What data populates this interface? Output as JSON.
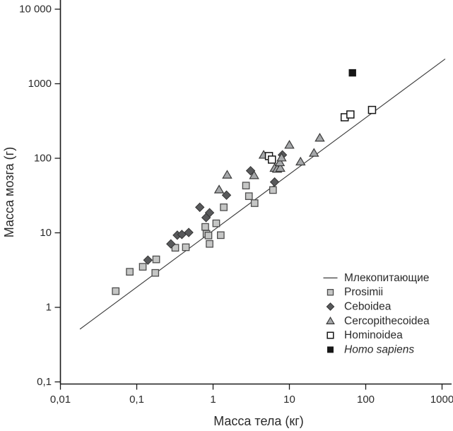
{
  "chart_data": {
    "type": "scatter",
    "title": "",
    "xlabel": "Масса тела (кг)",
    "ylabel": "Масса мозга (г)",
    "x_scale": "log",
    "y_scale": "log",
    "xlim": [
      0.01,
      1000
    ],
    "ylim": [
      0.1,
      10000
    ],
    "grid": false,
    "x_ticks": {
      "values": [
        0.01,
        0.1,
        1,
        10,
        100,
        1000
      ],
      "labels": [
        "0,01",
        "0,1",
        "1",
        "10",
        "100",
        "1000"
      ]
    },
    "y_ticks": {
      "values": [
        10000,
        1000,
        100,
        10,
        1,
        0.1
      ],
      "labels": [
        "10 000",
        "1000",
        "100",
        "10",
        "1",
        "0,1"
      ]
    },
    "regression_line": {
      "name": "Млекопитающие",
      "x": [
        0.018,
        1100
      ],
      "y": [
        0.51,
        2150
      ],
      "color": "#3c3c3c"
    },
    "series": [
      {
        "name": "Prosimii",
        "marker": "square",
        "fill": "#c5c6c5",
        "stroke": "#4c4c4c",
        "points": [
          [
            0.053,
            1.65
          ],
          [
            0.081,
            3.0
          ],
          [
            0.12,
            3.5
          ],
          [
            0.175,
            2.9
          ],
          [
            0.18,
            4.4
          ],
          [
            0.32,
            6.3
          ],
          [
            0.44,
            6.4
          ],
          [
            0.79,
            12
          ],
          [
            0.82,
            9.7
          ],
          [
            0.87,
            9.2
          ],
          [
            0.9,
            7.1
          ],
          [
            1.1,
            13.4
          ],
          [
            1.26,
            9.3
          ],
          [
            1.38,
            22
          ],
          [
            2.7,
            43
          ],
          [
            2.95,
            31
          ],
          [
            3.5,
            25
          ],
          [
            6.1,
            37.5
          ]
        ]
      },
      {
        "name": "Ceboidea",
        "marker": "diamond",
        "fill": "#58595b",
        "stroke": "#353535",
        "points": [
          [
            0.14,
            4.3
          ],
          [
            0.28,
            7.1
          ],
          [
            0.34,
            9.3
          ],
          [
            0.39,
            9.5
          ],
          [
            0.48,
            10.1
          ],
          [
            0.67,
            22
          ],
          [
            0.81,
            16
          ],
          [
            0.9,
            18.6
          ],
          [
            1.5,
            32
          ],
          [
            3.1,
            68
          ],
          [
            6.4,
            48
          ],
          [
            8.1,
            111
          ]
        ]
      },
      {
        "name": "Cercopithecoidea",
        "marker": "triangle",
        "fill": "#a6a8aa",
        "stroke": "#3a3a3a",
        "points": [
          [
            1.2,
            38
          ],
          [
            1.53,
            60
          ],
          [
            3.45,
            59
          ],
          [
            4.6,
            111
          ],
          [
            6.4,
            74
          ],
          [
            6.9,
            72
          ],
          [
            7.6,
            74
          ],
          [
            7.5,
            88
          ],
          [
            7.9,
            102
          ],
          [
            10,
            151
          ],
          [
            14,
            90
          ],
          [
            21,
            118
          ],
          [
            25,
            188
          ]
        ]
      },
      {
        "name": "Hominoidea",
        "marker": "open-square",
        "fill": "#ffffff",
        "stroke": "#161616",
        "points": [
          [
            5.4,
            107
          ],
          [
            5.9,
            96
          ],
          [
            53,
            355
          ],
          [
            63,
            387
          ],
          [
            121,
            445
          ]
        ]
      },
      {
        "name": "Homo sapiens",
        "marker": "filled-square",
        "fill": "#161616",
        "stroke": "#161616",
        "italic": true,
        "points": [
          [
            67,
            1400
          ]
        ]
      }
    ],
    "legend": {
      "position": "lower-right",
      "entries": [
        {
          "marker": "line",
          "label": "Млекопитающие",
          "italic": false
        },
        {
          "marker": "square",
          "label": "Prosimii",
          "italic": false
        },
        {
          "marker": "diamond",
          "label": "Ceboidea",
          "italic": false
        },
        {
          "marker": "triangle",
          "label": "Cercopithecoidea",
          "italic": false
        },
        {
          "marker": "open-square",
          "label": "Hominoidea",
          "italic": false
        },
        {
          "marker": "filled-square",
          "label": "Homo sapiens",
          "italic": true
        }
      ]
    },
    "colors": {
      "axis": "#1a1a1a",
      "text": "#2a2a2a",
      "line": "#3c3c3c"
    }
  }
}
